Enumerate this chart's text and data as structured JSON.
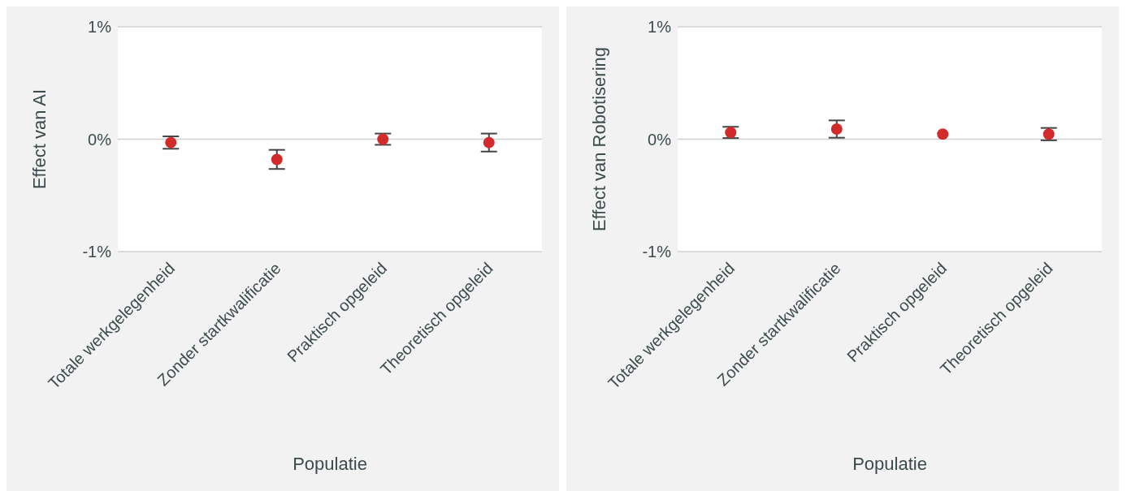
{
  "chart_data": [
    {
      "type": "scatter",
      "categories": [
        "Totale werkgelegenheid",
        "Zonder startkwalificatie",
        "Praktisch opgeleid",
        "Theoretisch opgeleid"
      ],
      "series": [
        {
          "color": "#d22b2b",
          "values": [
            -0.03,
            -0.18,
            0.0,
            -0.03
          ],
          "errors": [
            0.055,
            0.085,
            0.05,
            0.08
          ]
        }
      ],
      "xlabel": "Populatie",
      "ylabel": "Effect van AI",
      "ylim": [
        -1,
        1
      ],
      "yticks": [
        {
          "value": -1,
          "label": "-1%"
        },
        {
          "value": 0,
          "label": "0%"
        },
        {
          "value": 1,
          "label": "1%"
        }
      ],
      "grid": "y",
      "marker": "circle",
      "legend": false
    },
    {
      "type": "scatter",
      "categories": [
        "Totale werkgelegenheid",
        "Zonder startkwalificatie",
        "Praktisch opgeleid",
        "Theoretisch opgeleid"
      ],
      "series": [
        {
          "color": "#d22b2b",
          "values": [
            0.06,
            0.09,
            0.045,
            0.045
          ],
          "errors": [
            0.05,
            0.077,
            null,
            0.055
          ]
        }
      ],
      "xlabel": "Populatie",
      "ylabel": "Effect van Robotisering",
      "ylim": [
        -1,
        1
      ],
      "yticks": [
        {
          "value": -1,
          "label": "-1%"
        },
        {
          "value": 0,
          "label": "0%"
        },
        {
          "value": 1,
          "label": "1%"
        }
      ],
      "grid": "y",
      "marker": "circle",
      "legend": false
    }
  ]
}
